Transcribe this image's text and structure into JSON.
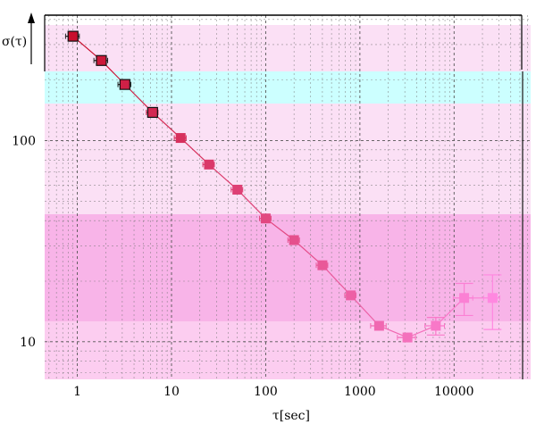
{
  "chart_data": {
    "type": "scatter",
    "title": "",
    "xlabel": "τ[sec]",
    "ylabel": "σ(τ)",
    "x_scale": "log",
    "y_scale": "log",
    "xlim": [
      0.45,
      65000
    ],
    "ylim": [
      6.5,
      420
    ],
    "x_ticks": [
      "1",
      "10",
      "100",
      "1000",
      "10000"
    ],
    "y_ticks": [
      "10",
      "100"
    ],
    "grid": true,
    "series": [
      {
        "x": [
          0.9,
          1.8,
          3.2,
          6.3,
          12.5,
          25,
          50,
          100,
          200,
          400,
          800,
          1600,
          3200,
          6400,
          12800,
          25600
        ],
        "y": [
          330,
          250,
          190,
          138,
          103,
          76,
          57,
          41,
          32,
          24,
          17,
          12,
          10.5,
          12,
          16.5,
          16.5
        ],
        "x_err": [
          0.15,
          0.3,
          0.5,
          0.9,
          1.8,
          3.5,
          7,
          14,
          28,
          56,
          110,
          300,
          700,
          1500,
          3000,
          5000
        ],
        "y_err": [
          0,
          0,
          0,
          0,
          0,
          0,
          0,
          0,
          0,
          0,
          0,
          0,
          0,
          1.2,
          3,
          5
        ]
      }
    ],
    "colors": {
      "marker_start": "#c8102e",
      "marker_end": "#ff88e0",
      "band_pink_light": "#fbe0f5",
      "band_pink_mid": "#fccdf0",
      "band_pink_strong": "#f8b4e8",
      "band_cyan": "#ccffff"
    }
  }
}
